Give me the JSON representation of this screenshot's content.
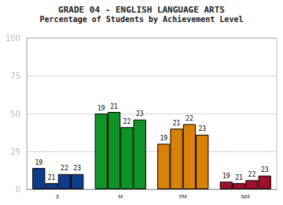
{
  "chart_data": {
    "type": "bar",
    "title": "GRADE 04 - ENGLISH LANGUAGE ARTS",
    "subtitle": "Percentage of Students by Achievement Level",
    "categories": [
      "E",
      "M",
      "PM",
      "NM"
    ],
    "series": [
      {
        "name": "19",
        "values": [
          14,
          50,
          30,
          5
        ]
      },
      {
        "name": "21",
        "values": [
          4,
          51,
          40,
          4
        ]
      },
      {
        "name": "22",
        "values": [
          10,
          41,
          43,
          6
        ]
      },
      {
        "name": "23",
        "values": [
          10,
          46,
          36,
          9
        ]
      }
    ],
    "colors": [
      "#0d3d8a",
      "#0f9428",
      "#d98206",
      "#a10f2b"
    ],
    "ylim": [
      0,
      100
    ],
    "yticks": [
      0,
      25,
      50,
      75,
      100
    ],
    "grid": true
  }
}
